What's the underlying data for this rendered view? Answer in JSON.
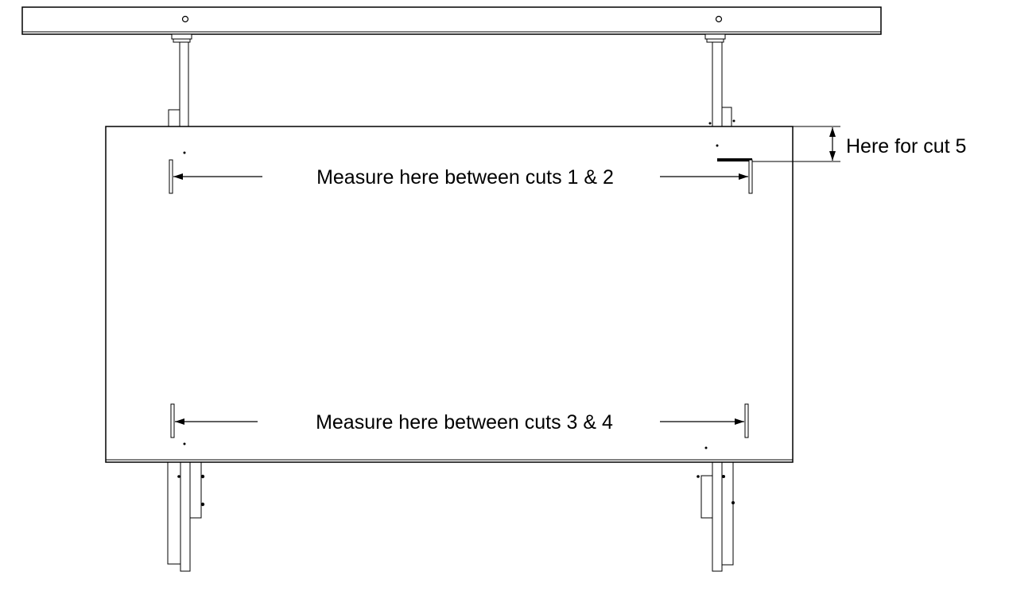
{
  "labels": {
    "cut12": "Measure here between cuts 1 & 2",
    "cut34": "Measure here between cuts 3 & 4",
    "cut5": "Here for cut 5"
  },
  "colors": {
    "line": "#000000",
    "background": "#ffffff"
  }
}
